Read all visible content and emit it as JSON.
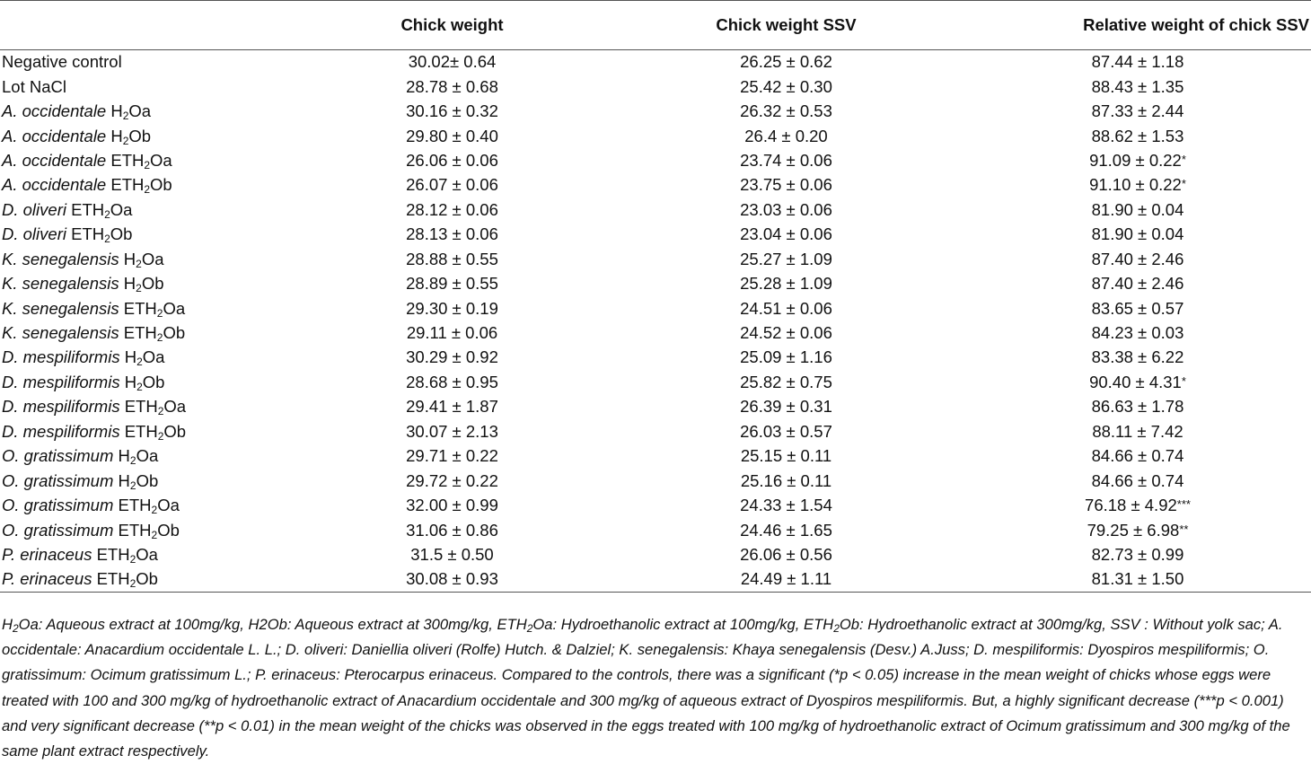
{
  "table": {
    "headers": [
      "",
      "Chick weight",
      "Chick weight SSV",
      "Relative weight of chick SSV"
    ],
    "rows": [
      {
        "species": "",
        "name": "Negative control",
        "sub": "",
        "tail": "",
        "cw": "30.02± 0.64",
        "ssv": "26.25 ± 0.62",
        "rel": "87.44 ± 1.18",
        "sig": ""
      },
      {
        "species": "",
        "name": "Lot NaCl",
        "sub": "",
        "tail": "",
        "cw": "28.78 ± 0.68",
        "ssv": "25.42 ± 0.30",
        "rel": "88.43 ± 1.35",
        "sig": ""
      },
      {
        "species": "A. occidentale",
        "name": " H",
        "sub": "2",
        "tail": "Oa",
        "cw": "30.16 ± 0.32",
        "ssv": "26.32 ± 0.53",
        "rel": "87.33 ± 2.44",
        "sig": ""
      },
      {
        "species": "A. occidentale",
        "name": " H",
        "sub": "2",
        "tail": "Ob",
        "cw": "29.80 ± 0.40",
        "ssv": "26.4 ± 0.20",
        "rel": "88.62 ± 1.53",
        "sig": ""
      },
      {
        "species": "A. occidentale",
        "name": " ETH",
        "sub": "2",
        "tail": "Oa",
        "cw": "26.06 ± 0.06",
        "ssv": "23.74 ± 0.06",
        "rel": "91.09 ± 0.22",
        "sig": "*"
      },
      {
        "species": "A. occidentale",
        "name": " ETH",
        "sub": "2",
        "tail": "Ob",
        "cw": "26.07 ± 0.06",
        "ssv": "23.75 ± 0.06",
        "rel": "91.10 ± 0.22",
        "sig": "*"
      },
      {
        "species": "D. oliveri",
        "name": " ETH",
        "sub": "2",
        "tail": "Oa",
        "cw": "28.12 ± 0.06",
        "ssv": "23.03 ± 0.06",
        "rel": "81.90 ± 0.04",
        "sig": ""
      },
      {
        "species": "D. oliveri",
        "name": " ETH",
        "sub": "2",
        "tail": "Ob",
        "cw": "28.13 ± 0.06",
        "ssv": "23.04 ± 0.06",
        "rel": "81.90 ± 0.04",
        "sig": ""
      },
      {
        "species": "K. senegalensis",
        "name": " H",
        "sub": "2",
        "tail": "Oa",
        "cw": "28.88 ± 0.55",
        "ssv": "25.27 ± 1.09",
        "rel": "87.40 ± 2.46",
        "sig": ""
      },
      {
        "species": "K. senegalensis",
        "name": " H",
        "sub": "2",
        "tail": "Ob",
        "cw": "28.89 ± 0.55",
        "ssv": "25.28 ± 1.09",
        "rel": "87.40 ± 2.46",
        "sig": ""
      },
      {
        "species": "K. senegalensis",
        "name": " ETH",
        "sub": "2",
        "tail": "Oa",
        "cw": "29.30 ± 0.19",
        "ssv": "24.51 ± 0.06",
        "rel": "83.65 ± 0.57",
        "sig": ""
      },
      {
        "species": "K. senegalensis",
        "name": " ETH",
        "sub": "2",
        "tail": "Ob",
        "cw": "29.11 ± 0.06",
        "ssv": "24.52 ± 0.06",
        "rel": "84.23 ± 0.03",
        "sig": ""
      },
      {
        "species": "D. mespiliformis",
        "name": " H",
        "sub": "2",
        "tail": "Oa",
        "cw": "30.29 ± 0.92",
        "ssv": "25.09 ± 1.16",
        "rel": "83.38 ± 6.22",
        "sig": ""
      },
      {
        "species": "D. mespiliformis",
        "name": " H",
        "sub": "2",
        "tail": "Ob",
        "cw": "28.68 ± 0.95",
        "ssv": "25.82 ± 0.75",
        "rel": "90.40 ± 4.31",
        "sig": "*"
      },
      {
        "species": "D. mespiliformis",
        "name": " ETH",
        "sub": "2",
        "tail": "Oa",
        "cw": "29.41 ± 1.87",
        "ssv": "26.39 ± 0.31",
        "rel": "86.63 ± 1.78",
        "sig": ""
      },
      {
        "species": "D. mespiliformis",
        "name": " ETH",
        "sub": "2",
        "tail": "Ob",
        "cw": "30.07 ± 2.13",
        "ssv": "26.03 ± 0.57",
        "rel": "88.11 ± 7.42",
        "sig": ""
      },
      {
        "species": "O. gratissimum",
        "name": " H",
        "sub": "2",
        "tail": "Oa",
        "cw": "29.71 ± 0.22",
        "ssv": "25.15 ± 0.11",
        "rel": "84.66 ± 0.74",
        "sig": ""
      },
      {
        "species": "O. gratissimum",
        "name": " H",
        "sub": "2",
        "tail": "Ob",
        "cw": "29.72 ± 0.22",
        "ssv": "25.16 ± 0.11",
        "rel": "84.66 ± 0.74",
        "sig": ""
      },
      {
        "species": "O. gratissimum",
        "name": " ETH",
        "sub": "2",
        "tail": "Oa",
        "cw": "32.00 ± 0.99",
        "ssv": "24.33 ± 1.54",
        "rel": "76.18 ± 4.92",
        "sig": "***"
      },
      {
        "species": "O. gratissimum",
        "name": " ETH",
        "sub": "2",
        "tail": "Ob",
        "cw": "31.06 ± 0.86",
        "ssv": "24.46 ± 1.65",
        "rel": "79.25 ± 6.98",
        "sig": "**"
      },
      {
        "species": "P. erinaceus",
        "name": " ETH",
        "sub": "2",
        "tail": "Oa",
        "cw": "31.5 ± 0.50",
        "ssv": "26.06 ± 0.56",
        "rel": "82.73 ± 0.99",
        "sig": ""
      },
      {
        "species": "P. erinaceus",
        "name": " ETH",
        "sub": "2",
        "tail": "Ob",
        "cw": "30.08 ± 0.93",
        "ssv": "24.49 ± 1.11",
        "rel": "81.31 ± 1.50",
        "sig": ""
      }
    ]
  },
  "footnote": {
    "p1": "H",
    "p2": "Oa: Aqueous extract at 100mg/kg, H2Ob: Aqueous extract at 300mg/kg, ETH",
    "p3": "Oa: Hydroethanolic extract at 100mg/kg, ETH",
    "p4": "Ob: Hydroethanolic extract at 300mg/kg, SSV : Without yolk sac; A. occidentale: Anacardium occidentale L. L.; D. oliveri: Daniellia oliveri (Rolfe) Hutch. & Dalziel; K. senegalensis: Khaya senegalensis (Desv.) A.Juss; D. mespiliformis: Dyospiros mespiliformis; O. gratissimum: Ocimum gratissimum L.; P. erinaceus: Pterocarpus erinaceus. Compared to the controls, there was a significant (*p < 0.05) increase in the mean weight of chicks whose eggs were treated with 100 and 300 mg/kg of hydroethanolic extract of Anacardium occidentale and 300 mg/kg of aqueous extract of Dyospiros mespiliformis. But, a highly significant decrease (***p < 0.001) and very significant decrease (**p < 0.01) in the mean weight of the chicks was observed in the eggs treated with 100 mg/kg of hydroethanolic extract of Ocimum gratissimum and 300 mg/kg of the same plant extract respectively.",
    "sub": "2"
  }
}
